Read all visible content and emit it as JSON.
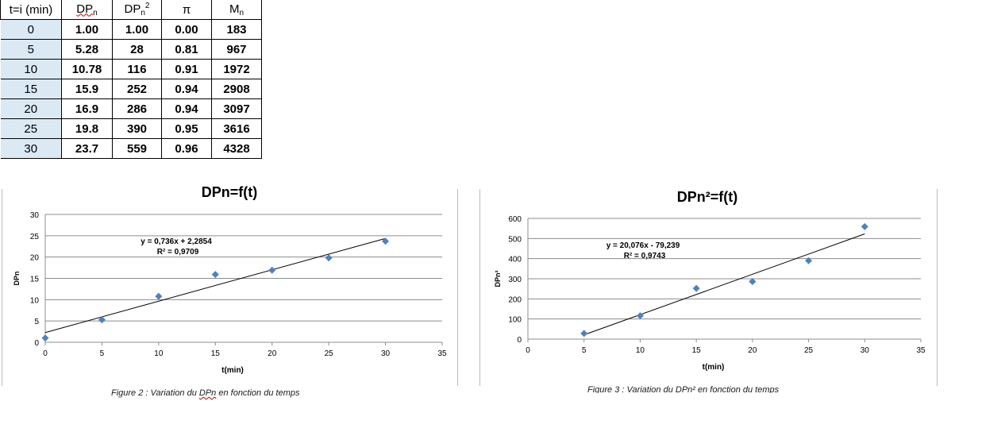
{
  "table": {
    "headers": {
      "t": "t=i (min)",
      "dp_base": "DP",
      "dp_sub": "n",
      "dp2_base": "DP",
      "dp2_sub": "n",
      "dp2_sup": "2",
      "pi": "π",
      "m_base": "M",
      "m_sub": "n"
    },
    "rows": [
      [
        "0",
        "1.00",
        "1.00",
        "0.00",
        "183"
      ],
      [
        "5",
        "5.28",
        "28",
        "0.81",
        "967"
      ],
      [
        "10",
        "10.78",
        "116",
        "0.91",
        "1972"
      ],
      [
        "15",
        "15.9",
        "252",
        "0.94",
        "2908"
      ],
      [
        "20",
        "16.9",
        "286",
        "0.94",
        "3097"
      ],
      [
        "25",
        "19.8",
        "390",
        "0.95",
        "3616"
      ],
      [
        "30",
        "23.7",
        "559",
        "0.96",
        "4328"
      ]
    ]
  },
  "chart_data": [
    {
      "type": "scatter",
      "title": "DPn=f(t)",
      "xlabel": "t(min)",
      "ylabel": "DPn",
      "xlim": [
        0,
        35
      ],
      "ylim": [
        0,
        30
      ],
      "xticks": [
        "0",
        "5",
        "10",
        "15",
        "20",
        "25",
        "30",
        "35"
      ],
      "yticks": [
        "0",
        "5",
        "10",
        "15",
        "20",
        "25",
        "30"
      ],
      "grid": "horizontal",
      "marker_color": "#4f81bd",
      "x": [
        0,
        5,
        10,
        15,
        20,
        25,
        30
      ],
      "y": [
        1.0,
        5.28,
        10.78,
        15.9,
        16.9,
        19.8,
        23.7
      ],
      "trendline": {
        "slope": 0.736,
        "intercept": 2.2854,
        "x_range": [
          0,
          30
        ]
      },
      "equation": "y = 0,736x + 2,2854",
      "r2": "R² = 0,9709",
      "caption": {
        "before": "Figure 2 : Variation du ",
        "mid": "DPn",
        "after": " en fonction du temps"
      }
    },
    {
      "type": "scatter",
      "title": "DPn²=f(t)",
      "xlabel": "t(min)",
      "ylabel": "DPn²",
      "xlim": [
        0,
        35
      ],
      "ylim": [
        0,
        600
      ],
      "xticks": [
        "0",
        "5",
        "10",
        "15",
        "20",
        "25",
        "30",
        "35"
      ],
      "yticks": [
        "0",
        "100",
        "200",
        "300",
        "400",
        "500",
        "600"
      ],
      "grid": "horizontal",
      "marker_color": "#4f81bd",
      "x": [
        5,
        10,
        15,
        20,
        25,
        30
      ],
      "y": [
        28,
        116,
        252,
        286,
        390,
        559
      ],
      "trendline": {
        "slope": 20.076,
        "intercept": -79.239,
        "x_range": [
          5,
          30
        ]
      },
      "equation": "y = 20,076x - 79,239",
      "r2": "R² = 0,9743",
      "caption": {
        "text": "Figure 3 : Variation du DPn² en fonction du temps"
      }
    }
  ]
}
